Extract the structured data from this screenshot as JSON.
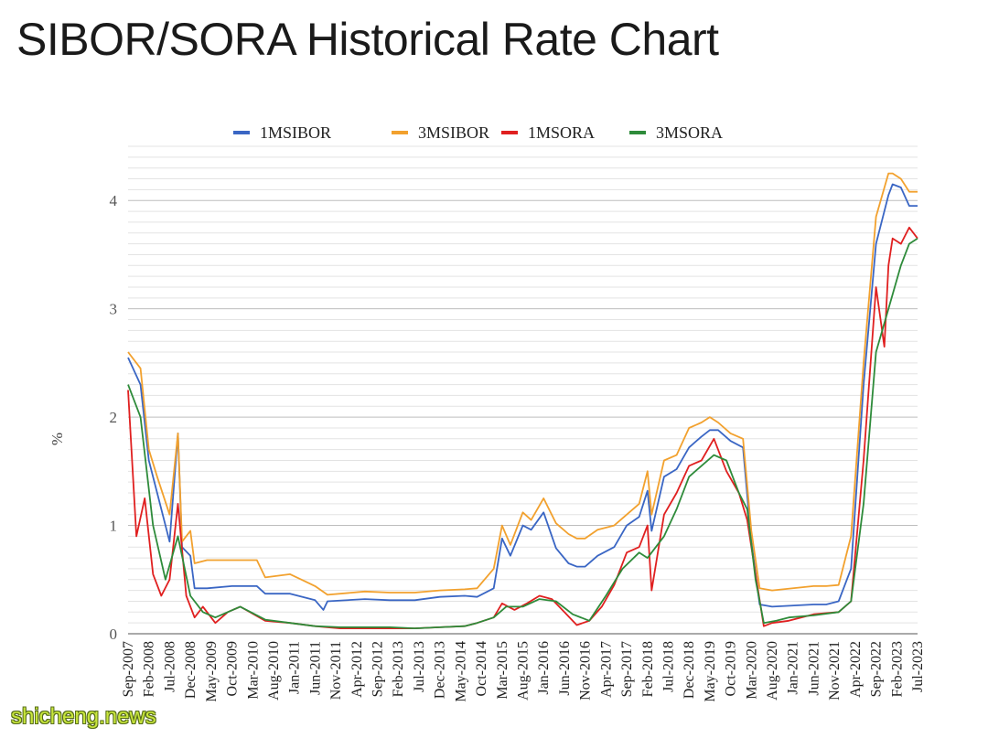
{
  "title": "SIBOR/SORA Historical Rate Chart",
  "watermark": "shicheng.news",
  "chart_data": {
    "type": "line",
    "ylabel": "%",
    "xlabel": "",
    "ylim": [
      0,
      4.5
    ],
    "yticks": [
      0,
      1,
      2,
      3,
      4
    ],
    "grid": true,
    "legend": "top",
    "x_start": "Sep-2007",
    "x_end": "Jul-2023",
    "x_tick_labels": [
      "Sep-2007",
      "Feb-2008",
      "Jul-2008",
      "Dec-2008",
      "May-2009",
      "Oct-2009",
      "Mar-2010",
      "Aug-2010",
      "Jan-2011",
      "Jun-2011",
      "Nov-2011",
      "Apr-2012",
      "Sep-2012",
      "Feb-2013",
      "Jul-2013",
      "Dec-2013",
      "May-2014",
      "Oct-2014",
      "Mar-2015",
      "Aug-2015",
      "Jan-2016",
      "Jun-2016",
      "Nov-2016",
      "Apr-2017",
      "Sep-2017",
      "Feb-2018",
      "Jul-2018",
      "Dec-2018",
      "May-2019",
      "Oct-2019",
      "Mar-2020",
      "Aug-2020",
      "Jan-2021",
      "Jun-2021",
      "Nov-2021",
      "Apr-2022",
      "Sep-2022",
      "Feb-2023",
      "Jul-2023"
    ],
    "series": [
      {
        "name": "1MSIBOR",
        "color": "#3a66c4",
        "x": [
          "2007-09",
          "2007-12",
          "2008-02",
          "2008-04",
          "2008-07",
          "2008-09",
          "2008-10",
          "2008-12",
          "2009-01",
          "2009-04",
          "2009-10",
          "2010-04",
          "2010-06",
          "2010-12",
          "2011-06",
          "2011-08",
          "2011-09",
          "2012-06",
          "2012-12",
          "2013-06",
          "2013-12",
          "2014-06",
          "2014-09",
          "2015-01",
          "2015-03",
          "2015-05",
          "2015-08",
          "2015-10",
          "2016-01",
          "2016-04",
          "2016-07",
          "2016-09",
          "2016-11",
          "2017-02",
          "2017-06",
          "2017-09",
          "2017-12",
          "2018-02",
          "2018-03",
          "2018-06",
          "2018-09",
          "2018-12",
          "2019-03",
          "2019-05",
          "2019-07",
          "2019-10",
          "2020-01",
          "2020-03",
          "2020-05",
          "2020-08",
          "2021-06",
          "2021-09",
          "2021-12",
          "2022-03",
          "2022-06",
          "2022-09",
          "2022-12",
          "2023-01",
          "2023-03",
          "2023-05",
          "2023-07"
        ],
        "values": [
          2.55,
          2.3,
          1.6,
          1.3,
          0.85,
          1.85,
          0.8,
          0.72,
          0.42,
          0.42,
          0.44,
          0.44,
          0.37,
          0.37,
          0.31,
          0.22,
          0.3,
          0.32,
          0.31,
          0.31,
          0.34,
          0.35,
          0.34,
          0.42,
          0.88,
          0.72,
          1.0,
          0.96,
          1.12,
          0.79,
          0.65,
          0.62,
          0.62,
          0.72,
          0.8,
          1.0,
          1.08,
          1.32,
          0.95,
          1.45,
          1.52,
          1.72,
          1.82,
          1.88,
          1.88,
          1.78,
          1.72,
          0.85,
          0.27,
          0.25,
          0.27,
          0.27,
          0.3,
          0.6,
          2.3,
          3.6,
          4.05,
          4.15,
          4.12,
          3.95,
          3.95
        ]
      },
      {
        "name": "3MSIBOR",
        "color": "#f2a12e",
        "x": [
          "2007-09",
          "2007-12",
          "2008-02",
          "2008-04",
          "2008-07",
          "2008-09",
          "2008-10",
          "2008-12",
          "2009-01",
          "2009-04",
          "2009-10",
          "2010-04",
          "2010-06",
          "2010-12",
          "2011-06",
          "2011-09",
          "2012-06",
          "2012-12",
          "2013-06",
          "2013-12",
          "2014-06",
          "2014-09",
          "2015-01",
          "2015-03",
          "2015-05",
          "2015-08",
          "2015-10",
          "2016-01",
          "2016-04",
          "2016-07",
          "2016-09",
          "2016-11",
          "2017-02",
          "2017-06",
          "2017-09",
          "2017-12",
          "2018-02",
          "2018-03",
          "2018-06",
          "2018-09",
          "2018-12",
          "2019-03",
          "2019-05",
          "2019-07",
          "2019-10",
          "2020-01",
          "2020-03",
          "2020-05",
          "2020-08",
          "2021-06",
          "2021-09",
          "2021-12",
          "2022-03",
          "2022-06",
          "2022-09",
          "2022-12",
          "2023-01",
          "2023-03",
          "2023-05",
          "2023-07"
        ],
        "values": [
          2.6,
          2.45,
          1.7,
          1.45,
          1.1,
          1.85,
          0.85,
          0.95,
          0.65,
          0.68,
          0.68,
          0.68,
          0.52,
          0.55,
          0.44,
          0.36,
          0.39,
          0.38,
          0.38,
          0.4,
          0.41,
          0.42,
          0.6,
          1.0,
          0.82,
          1.12,
          1.05,
          1.25,
          1.02,
          0.92,
          0.88,
          0.88,
          0.96,
          1.0,
          1.1,
          1.2,
          1.5,
          1.1,
          1.6,
          1.65,
          1.9,
          1.95,
          2.0,
          1.95,
          1.85,
          1.8,
          0.95,
          0.42,
          0.4,
          0.44,
          0.44,
          0.45,
          0.9,
          2.5,
          3.85,
          4.25,
          4.25,
          4.2,
          4.08,
          4.08
        ]
      },
      {
        "name": "1MSORA",
        "color": "#e02020",
        "x": [
          "2007-09",
          "2007-11",
          "2008-01",
          "2008-03",
          "2008-05",
          "2008-07",
          "2008-09",
          "2008-11",
          "2009-01",
          "2009-03",
          "2009-06",
          "2009-09",
          "2009-12",
          "2010-06",
          "2010-12",
          "2011-06",
          "2011-12",
          "2012-06",
          "2012-12",
          "2013-06",
          "2013-12",
          "2014-06",
          "2014-09",
          "2015-01",
          "2015-03",
          "2015-06",
          "2015-09",
          "2015-12",
          "2016-03",
          "2016-06",
          "2016-09",
          "2016-12",
          "2017-03",
          "2017-06",
          "2017-09",
          "2017-12",
          "2018-02",
          "2018-03",
          "2018-06",
          "2018-09",
          "2018-12",
          "2019-03",
          "2019-06",
          "2019-09",
          "2019-12",
          "2020-02",
          "2020-04",
          "2020-06",
          "2020-08",
          "2020-12",
          "2021-06",
          "2021-12",
          "2022-03",
          "2022-06",
          "2022-09",
          "2022-11",
          "2022-12",
          "2023-01",
          "2023-03",
          "2023-05",
          "2023-07"
        ],
        "values": [
          2.25,
          0.9,
          1.25,
          0.55,
          0.35,
          0.5,
          1.2,
          0.35,
          0.15,
          0.25,
          0.1,
          0.2,
          0.25,
          0.12,
          0.1,
          0.07,
          0.05,
          0.05,
          0.05,
          0.05,
          0.06,
          0.07,
          0.1,
          0.15,
          0.28,
          0.22,
          0.28,
          0.35,
          0.32,
          0.2,
          0.08,
          0.12,
          0.25,
          0.45,
          0.75,
          0.8,
          1.0,
          0.4,
          1.1,
          1.3,
          1.55,
          1.6,
          1.8,
          1.5,
          1.3,
          1.05,
          0.55,
          0.07,
          0.1,
          0.12,
          0.18,
          0.2,
          0.3,
          1.6,
          3.2,
          2.65,
          3.4,
          3.65,
          3.6,
          3.75,
          3.65
        ]
      },
      {
        "name": "3MSORA",
        "color": "#2e8b3a",
        "x": [
          "2007-09",
          "2007-12",
          "2008-03",
          "2008-06",
          "2008-09",
          "2008-12",
          "2009-03",
          "2009-06",
          "2009-09",
          "2009-12",
          "2010-06",
          "2010-12",
          "2011-06",
          "2011-12",
          "2012-06",
          "2012-12",
          "2013-06",
          "2013-12",
          "2014-06",
          "2014-09",
          "2015-01",
          "2015-04",
          "2015-08",
          "2015-12",
          "2016-04",
          "2016-08",
          "2016-12",
          "2017-04",
          "2017-08",
          "2017-12",
          "2018-02",
          "2018-06",
          "2018-09",
          "2018-12",
          "2019-03",
          "2019-06",
          "2019-09",
          "2019-12",
          "2020-02",
          "2020-04",
          "2020-06",
          "2020-09",
          "2020-12",
          "2021-06",
          "2021-12",
          "2022-03",
          "2022-06",
          "2022-09",
          "2022-12",
          "2023-03",
          "2023-05",
          "2023-07"
        ],
        "values": [
          2.3,
          2.0,
          1.0,
          0.5,
          0.9,
          0.35,
          0.2,
          0.15,
          0.2,
          0.25,
          0.13,
          0.1,
          0.07,
          0.06,
          0.06,
          0.06,
          0.05,
          0.06,
          0.07,
          0.1,
          0.15,
          0.25,
          0.25,
          0.32,
          0.3,
          0.18,
          0.12,
          0.35,
          0.6,
          0.75,
          0.7,
          0.9,
          1.15,
          1.45,
          1.55,
          1.65,
          1.6,
          1.3,
          1.15,
          0.5,
          0.1,
          0.12,
          0.15,
          0.17,
          0.2,
          0.3,
          1.2,
          2.6,
          3.0,
          3.4,
          3.6,
          3.65
        ]
      }
    ]
  }
}
